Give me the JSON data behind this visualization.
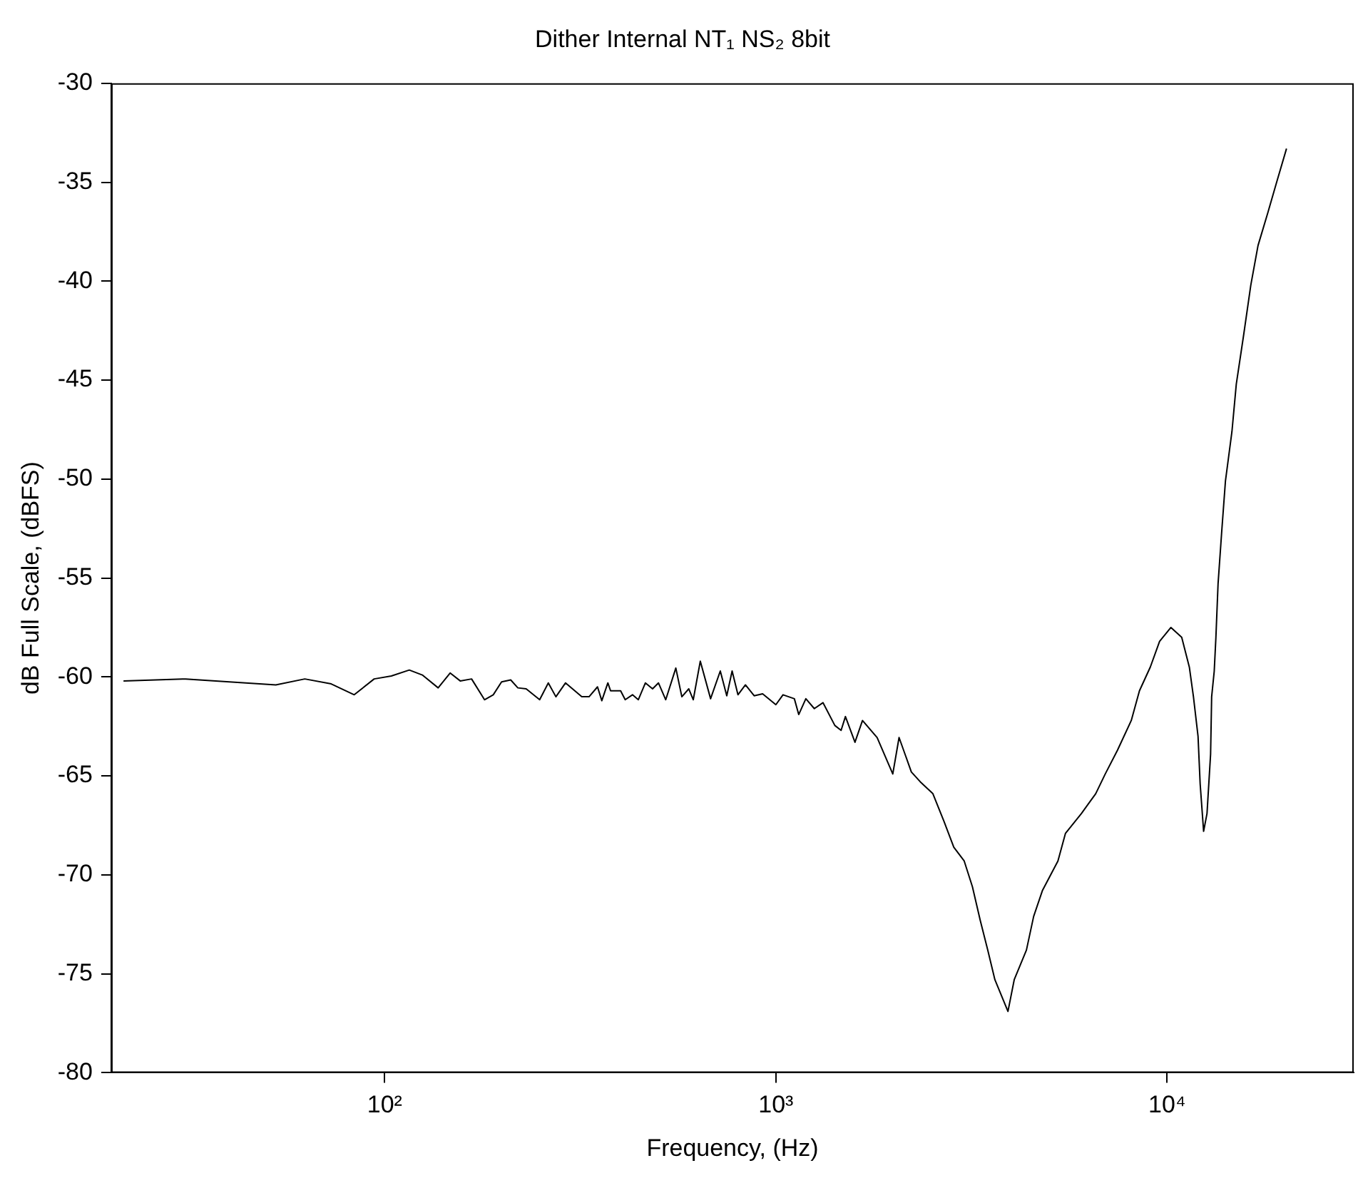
{
  "chart_data": {
    "type": "line",
    "title": "Dither Internal NT₁ NS₂ 8bit",
    "xlabel": "Frequency, (Hz)",
    "ylabel": "dB Full Scale, (dBFS)",
    "log": "x",
    "grid": false,
    "legend": false,
    "marker": "none",
    "line_style": "solid",
    "xlim": [
      20,
      30000
    ],
    "xticks": [
      {
        "value": 100,
        "label": "10²"
      },
      {
        "value": 1000,
        "label": "10³"
      },
      {
        "value": 10000,
        "label": "10⁴"
      }
    ],
    "ylim": [
      -80,
      -30
    ],
    "yticks": [
      -80,
      -75,
      -70,
      -65,
      -60,
      -55,
      -50,
      -45,
      -40,
      -35,
      -30
    ],
    "series": [
      {
        "color": "#000000",
        "x": [
          21.5,
          31,
          52.7,
          62.5,
          73,
          83.6,
          94,
          104,
          115.6,
          124.8,
          137,
          147,
          156,
          166.8,
          180,
          189.5,
          199,
          210,
          219,
          230,
          249,
          262,
          274,
          290,
          319,
          333,
          350,
          359,
          372,
          378,
          401,
          412,
          430,
          445,
          464,
          484,
          501,
          523,
          555,
          575,
          599,
          615,
          641,
          681,
          721,
          749,
          773,
          800,
          836,
          880,
          925,
          1000,
          1043,
          1115,
          1144,
          1193,
          1254,
          1320,
          1415,
          1468,
          1506,
          1593,
          1665,
          1815,
          1990,
          2065,
          2220,
          2340,
          2520,
          2690,
          2850,
          3030,
          3180,
          3330,
          3480,
          3630,
          3920,
          4067,
          4370,
          4560,
          4800,
          5260,
          5500,
          6040,
          6570,
          6950,
          7470,
          8100,
          8500,
          9060,
          9570,
          10230,
          10900,
          11400,
          11680,
          12000,
          12150,
          12400,
          12650,
          12920,
          13000,
          13200,
          13330,
          13500,
          13800,
          14100,
          14650,
          15030,
          15700,
          16370,
          17080,
          18120,
          19060,
          20200
        ],
        "values": [
          -60.2,
          -60.1,
          -60.4,
          -60.1,
          -60.35,
          -60.9,
          -60.1,
          -59.95,
          -59.65,
          -59.9,
          -60.55,
          -59.8,
          -60.2,
          -60.1,
          -61.15,
          -60.9,
          -60.25,
          -60.15,
          -60.55,
          -60.6,
          -61.15,
          -60.3,
          -61,
          -60.3,
          -61,
          -61,
          -60.5,
          -61.2,
          -60.3,
          -60.7,
          -60.7,
          -61.15,
          -60.9,
          -61.15,
          -60.3,
          -60.6,
          -60.3,
          -61.15,
          -59.55,
          -61,
          -60.6,
          -61.15,
          -59.2,
          -61.1,
          -59.7,
          -60.95,
          -59.7,
          -60.9,
          -60.4,
          -60.95,
          -60.85,
          -61.4,
          -60.9,
          -61.1,
          -61.9,
          -61.1,
          -61.6,
          -61.3,
          -62.45,
          -62.7,
          -62,
          -63.3,
          -62.2,
          -63.06,
          -64.9,
          -63.06,
          -64.8,
          -65.3,
          -65.9,
          -67.3,
          -68.6,
          -69.3,
          -70.6,
          -72.3,
          -73.8,
          -75.3,
          -76.9,
          -75.3,
          -73.8,
          -72.1,
          -70.8,
          -69.3,
          -67.9,
          -66.9,
          -65.9,
          -64.9,
          -63.7,
          -62.2,
          -60.7,
          -59.5,
          -58.2,
          -57.5,
          -58,
          -59.5,
          -61,
          -63,
          -65.4,
          -67.8,
          -66.9,
          -63.9,
          -61,
          -59.7,
          -58,
          -55.3,
          -52.6,
          -50.1,
          -47.6,
          -45.2,
          -42.7,
          -40.2,
          -38.2,
          -36.5,
          -35,
          -33.3
        ]
      }
    ]
  }
}
